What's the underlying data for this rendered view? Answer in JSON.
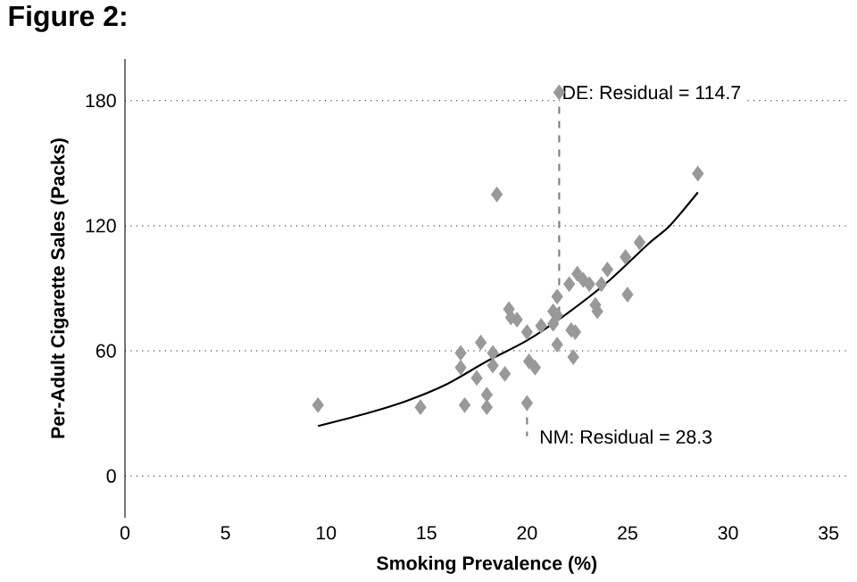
{
  "chart_data": {
    "type": "scatter",
    "title": "Figure 2:",
    "xlabel": "Smoking Prevalence (%)",
    "ylabel": "Per-Adult Cigarette Sales (Packs)",
    "xlim": [
      0,
      36
    ],
    "ylim": [
      -20,
      200
    ],
    "xticks": [
      0,
      5,
      10,
      15,
      20,
      25,
      30,
      35
    ],
    "yticks": [
      0,
      60,
      120,
      180
    ],
    "grid": "y",
    "series": [
      {
        "color": "#999999",
        "marker": "diamond",
        "x": [
          9.6,
          14.7,
          16.9,
          18.0,
          20.0,
          18.0,
          16.7,
          17.7,
          17.5,
          16.7,
          18.3,
          18.9,
          19.1,
          19.5,
          20.1,
          20.4,
          20.0,
          20.7,
          21.3,
          21.5,
          22.4,
          22.3,
          22.1,
          22.5,
          21.5,
          21.3,
          23.7,
          23.4,
          23.5,
          24.0,
          25.0,
          24.9,
          21.6,
          18.5,
          28.5,
          25.6,
          22.8,
          23.1,
          19.2,
          22.2,
          21.5,
          18.3
        ],
        "values": [
          34,
          33,
          34,
          33,
          35,
          39,
          52,
          64,
          47,
          59,
          53,
          49,
          80,
          75,
          55,
          52,
          69,
          72,
          73,
          63,
          69,
          57,
          92,
          97,
          86,
          79,
          92,
          82,
          79,
          99,
          87,
          105,
          184,
          135,
          145,
          112,
          94,
          92,
          76,
          70,
          77,
          59
        ]
      },
      {
        "type": "line",
        "color": "#000000",
        "marker": "none",
        "x": [
          9.6,
          12,
          14,
          16,
          18,
          20,
          22,
          24,
          26,
          27.1,
          28.5
        ],
        "values": [
          24,
          30,
          36,
          44,
          55,
          65,
          78,
          93,
          111,
          120,
          136
        ]
      }
    ],
    "annotations": [
      {
        "text": "DE: Residual = 114.7",
        "x": 21.6,
        "y": 184
      },
      {
        "text": "NM: Residual = 28.3",
        "x": 20.0,
        "y": 35
      }
    ]
  }
}
